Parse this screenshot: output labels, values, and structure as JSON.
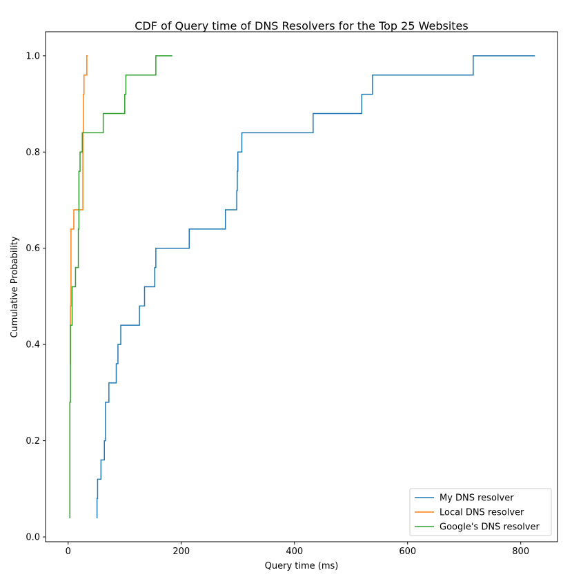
{
  "chart_data": {
    "type": "line",
    "step": true,
    "title": "CDF of Query time of DNS Resolvers for the Top 25 Websites",
    "xlabel": "Query time (ms)",
    "ylabel": "Cumulative Probability",
    "xlim": [
      -40,
      865
    ],
    "ylim": [
      -0.01,
      1.05
    ],
    "xticks": [
      0,
      200,
      400,
      600,
      800
    ],
    "yticks": [
      0.0,
      0.2,
      0.4,
      0.6,
      0.8,
      1.0
    ],
    "xtick_labels": [
      "0",
      "200",
      "400",
      "600",
      "800"
    ],
    "ytick_labels": [
      "0.0",
      "0.2",
      "0.4",
      "0.6",
      "0.8",
      "1.0"
    ],
    "grid": false,
    "legend_position": "bottom-right",
    "series": [
      {
        "name": "My DNS resolver",
        "color": "#1f77b4",
        "x": [
          50,
          51,
          52,
          58,
          64,
          66,
          72,
          85,
          88,
          93,
          126,
          135,
          153,
          155,
          157,
          214,
          278,
          298,
          299,
          300,
          301,
          307,
          433,
          519,
          538,
          716,
          825
        ],
        "y": [
          0.04,
          0.08,
          0.12,
          0.16,
          0.2,
          0.28,
          0.32,
          0.36,
          0.4,
          0.44,
          0.48,
          0.52,
          0.56,
          0.6,
          0.6,
          0.64,
          0.68,
          0.72,
          0.76,
          0.8,
          0.8,
          0.84,
          0.88,
          0.92,
          0.96,
          1.0,
          1.0
        ]
      },
      {
        "name": "Local DNS resolver",
        "color": "#ff7f0e",
        "x": [
          3,
          4,
          5,
          10,
          26,
          27,
          28,
          33,
          35
        ],
        "y": [
          0.36,
          0.48,
          0.64,
          0.68,
          0.84,
          0.92,
          0.96,
          1.0,
          1.0
        ]
      },
      {
        "name": "Google's DNS resolver",
        "color": "#2ca02c",
        "x": [
          2,
          3,
          4,
          7,
          13,
          18,
          19,
          21,
          25,
          62,
          100,
          102,
          155,
          184
        ],
        "y": [
          0.04,
          0.28,
          0.44,
          0.52,
          0.56,
          0.64,
          0.76,
          0.8,
          0.84,
          0.88,
          0.92,
          0.96,
          1.0,
          1.0
        ]
      }
    ]
  }
}
